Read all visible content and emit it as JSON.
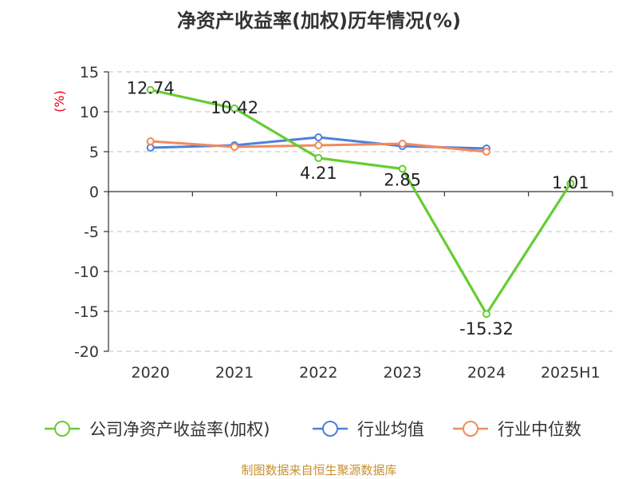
{
  "chart_data": {
    "type": "line",
    "title": "净资产收益率(加权)历年情况(%)",
    "xlabel": "",
    "ylabel": "(%)",
    "categories": [
      "2020",
      "2021",
      "2022",
      "2023",
      "2024",
      "2025H1"
    ],
    "ylim": [
      -20,
      15
    ],
    "yticks": [
      15,
      10,
      5,
      0,
      -5,
      -10,
      -15,
      -20
    ],
    "grid": true,
    "legend_position": "bottom",
    "series": [
      {
        "name": "公司净资产收益率(加权)",
        "color": "#66cc33",
        "values": [
          12.74,
          10.42,
          4.21,
          2.85,
          -15.32,
          1.01
        ],
        "labels": [
          "12.74",
          "10.42",
          "4.21",
          "2.85",
          "-15.32",
          "1.01"
        ]
      },
      {
        "name": "行业均值",
        "color": "#4e7fdc",
        "values": [
          5.5,
          5.8,
          6.8,
          5.7,
          5.4,
          null
        ]
      },
      {
        "name": "行业中位数",
        "color": "#f08a5d",
        "values": [
          6.3,
          5.6,
          5.8,
          6.0,
          5.0,
          null
        ]
      }
    ],
    "source": "制图数据来自恒生聚源数据库"
  }
}
